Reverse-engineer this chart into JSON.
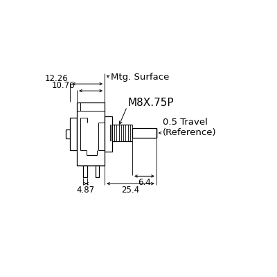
{
  "bg_color": "#ffffff",
  "line_color": "#000000",
  "annotations": {
    "mtg_surface": "Mtg. Surface",
    "thread": "M8X.75P",
    "travel": "0.5 Travel\n(Reference)",
    "dim_1226": "12.26",
    "dim_1076": "10.76",
    "dim_487": "4.87",
    "dim_64": "6.4",
    "dim_254": "25.4"
  },
  "font_size_dim": 8.5,
  "font_size_label": 9.5,
  "font_size_thread": 11
}
